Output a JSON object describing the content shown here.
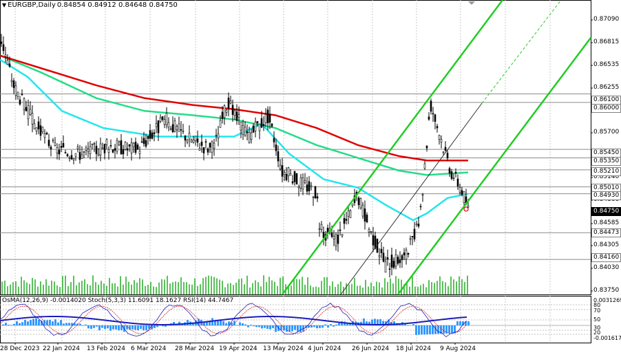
{
  "header": {
    "symbol": "EURGBP,Daily",
    "ohlc": "0.84854 0.84912 0.84648 0.84750"
  },
  "oscillator_header": "OsMA(12,26,9) -0.0014020  Stoch(5,3,3) 11.6091 18.1627  RSI(14) 44.7467",
  "price_axis": [
    "0.87090",
    "0.86815",
    "0.86535",
    "0.86255",
    "0.85700",
    "0.85140",
    "0.84860",
    "0.84585",
    "0.84305",
    "0.84030",
    "0.83750"
  ],
  "price_tags": [
    {
      "text": "0.86100",
      "style": "grey"
    },
    {
      "text": "0.86000",
      "style": "grey"
    },
    {
      "text": "0.85450",
      "style": "grey"
    },
    {
      "text": "0.85350",
      "style": "grey"
    },
    {
      "text": "0.85210",
      "style": "grey"
    },
    {
      "text": "0.85010",
      "style": "grey"
    },
    {
      "text": "0.84930",
      "style": "grey"
    },
    {
      "text": "0.84750",
      "style": "dark"
    },
    {
      "text": "0.84473",
      "style": "grey"
    },
    {
      "text": "0.84160",
      "style": "grey"
    }
  ],
  "osc_axis": [
    "0.0031269",
    "80",
    "70",
    "50",
    "30",
    "20",
    "-0.001617"
  ],
  "date_axis": [
    "28 Dec 2023",
    "22 Jan 2024",
    "13 Feb 2024",
    "6 Mar 2024",
    "28 Mar 2024",
    "19 Apr 2024",
    "13 May 2024",
    "4 Jun 2024",
    "26 Jun 2024",
    "18 Jul 2024",
    "9 Aug 2024"
  ],
  "colors": {
    "ma_red": "#e00000",
    "ma_green": "#22dd88",
    "ma_cyan": "#22e6ee",
    "channel": "#22cc22",
    "candle": "#000000",
    "osc_hist": "#3399ff",
    "rsi": "#1c1cbb",
    "stoch_main": "#1c1cbb",
    "stoch_signal": "#dd2222",
    "volume": "#22aa22"
  },
  "chart_data": {
    "type": "line",
    "symbol": "EURGBP",
    "timeframe": "Daily",
    "ylim": [
      0.8375,
      0.872
    ],
    "x": [
      "28 Dec 2023",
      "22 Jan 2024",
      "13 Feb 2024",
      "6 Mar 2024",
      "28 Mar 2024",
      "19 Apr 2024",
      "13 May 2024",
      "4 Jun 2024",
      "26 Jun 2024",
      "18 Jul 2024",
      "9 Aug 2024"
    ],
    "series": [
      {
        "values": [
          0.8655,
          0.863,
          0.861,
          0.86,
          0.859,
          0.858,
          0.857,
          0.854,
          0.852,
          0.8535,
          0.8535
        ]
      },
      {
        "values": [
          0.8655,
          0.862,
          0.859,
          0.8575,
          0.857,
          0.856,
          0.8545,
          0.8525,
          0.851,
          0.852,
          0.852
        ]
      },
      {
        "values": [
          0.865,
          0.858,
          0.8565,
          0.8555,
          0.8555,
          0.856,
          0.8545,
          0.85,
          0.849,
          0.846,
          0.8493
        ]
      }
    ],
    "last_close": 0.8475
  }
}
